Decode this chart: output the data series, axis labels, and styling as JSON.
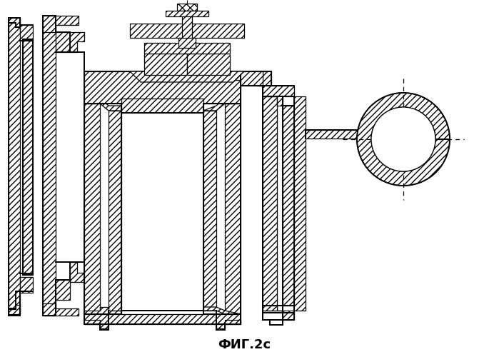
{
  "title": "ФИГ.2с",
  "title_fontsize": 13,
  "bg_color": "#ffffff",
  "figsize": [
    6.85,
    5.0
  ],
  "dpi": 100
}
